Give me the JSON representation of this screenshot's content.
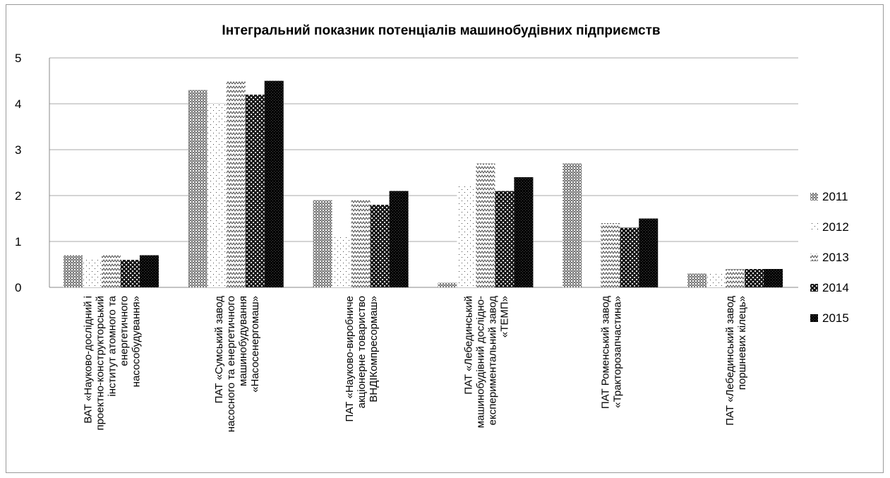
{
  "chart_data": {
    "type": "bar",
    "title": "Інтегральний показник потенціалів машинобудівних підприємств",
    "xlabel": "",
    "ylabel": "",
    "ylim": [
      0,
      5
    ],
    "yticks": [
      0,
      1,
      2,
      3,
      4,
      5
    ],
    "grid": true,
    "legend_position": "right",
    "categories": [
      [
        "ВАТ «Науково-дослідний і",
        "проектно-конструкторський",
        "інститут атомного та",
        "енергетичного",
        "насособудування»"
      ],
      [
        "ПАТ «Сумський завод",
        "насосного та енергетичного",
        "машинобудування",
        "«Насосенергомаш»"
      ],
      [
        "ПАТ «Науково-виробниче",
        "акціонерне товариство",
        "ВНДІКомпресормаш»"
      ],
      [
        "ПАТ «Лебединський",
        "машинобудівний дослідно-",
        "експериментальний завод",
        "«ТЕМП»"
      ],
      [
        "ПАТ Роменський завод",
        "«Тракторозапчастина»"
      ],
      [
        "ПАТ «Лебединський завод",
        "поршневих кілець»"
      ]
    ],
    "series": [
      {
        "name": "2011",
        "pattern": "dense-grey",
        "values": [
          0.7,
          4.3,
          1.9,
          0.1,
          2.7,
          0.3
        ]
      },
      {
        "name": "2012",
        "pattern": "sparse-dots",
        "values": [
          0.6,
          4.0,
          1.1,
          2.2,
          0.0,
          0.3
        ]
      },
      {
        "name": "2013",
        "pattern": "zigzag",
        "values": [
          0.7,
          4.5,
          1.9,
          2.7,
          1.4,
          0.4
        ]
      },
      {
        "name": "2014",
        "pattern": "checker",
        "values": [
          0.6,
          4.2,
          1.8,
          2.1,
          1.3,
          0.4
        ]
      },
      {
        "name": "2015",
        "pattern": "dark-checker",
        "values": [
          0.7,
          4.5,
          2.1,
          2.4,
          1.5,
          0.4
        ]
      }
    ]
  }
}
